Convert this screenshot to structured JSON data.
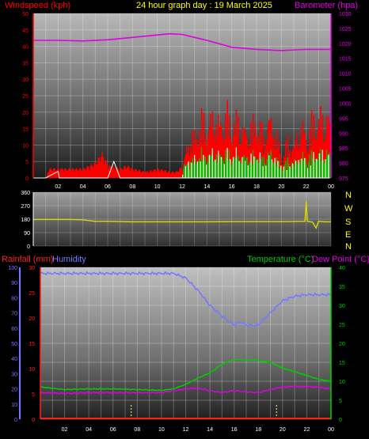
{
  "header": {
    "wind_label": "Windspeed (kph)",
    "title": "24 hour graph day : 19 March 2025",
    "baro_label": "Barometer (hpa)"
  },
  "colors": {
    "wind": "#ff0000",
    "baro": "#e000e0",
    "direction": "#d8d800",
    "rain": "#ff2020",
    "humidity": "#7878ff",
    "temperature": "#00cc00",
    "dewpoint": "#e000e0",
    "gust_low": "#00c000",
    "wind_low": "#e8ffe8"
  },
  "compass": [
    "N",
    "W",
    "S",
    "E",
    "N"
  ],
  "chart_data": [
    {
      "type": "line",
      "name": "wind-barometer",
      "xlabel": "",
      "x_ticks": [
        "02",
        "04",
        "06",
        "08",
        "10",
        "12",
        "14",
        "16",
        "18",
        "20",
        "22",
        "00"
      ],
      "y_left_label": "Windspeed (kph)",
      "y_left_ticks": [
        0,
        5,
        10,
        15,
        20,
        25,
        30,
        35,
        40,
        45,
        50
      ],
      "y_left_lim": [
        0,
        50
      ],
      "y_right_label": "Barometer (hpa)",
      "y_right_ticks": [
        975,
        980,
        985,
        990,
        995,
        1000,
        1005,
        1010,
        1015,
        1020,
        1025,
        1030
      ],
      "y_right_lim": [
        975,
        1030
      ],
      "grid": true,
      "series": [
        {
          "name": "Windspeed (kph)",
          "axis": "left",
          "x": [
            0,
            1,
            2,
            2.1,
            3,
            4,
            5,
            6,
            6.5,
            7,
            8,
            9,
            10,
            11,
            11.9,
            12,
            13,
            14,
            15,
            16,
            17,
            18,
            19,
            20,
            21,
            22,
            23,
            23.9
          ],
          "values": [
            0,
            0,
            2,
            0,
            0,
            0,
            0,
            0,
            5,
            0,
            0,
            0,
            0,
            0,
            0,
            0,
            0,
            0,
            0,
            0,
            0,
            0,
            0,
            0,
            0,
            0,
            0,
            0
          ]
        },
        {
          "name": "Gusts",
          "axis": "left",
          "x": [
            0,
            1,
            1.2,
            2,
            3,
            4,
            5,
            5.5,
            6,
            7,
            7.5,
            8,
            9,
            10,
            11,
            11.5,
            12,
            12.5,
            13,
            13.5,
            14,
            14.5,
            15,
            15.5,
            16,
            16.5,
            17,
            17.5,
            18,
            18.5,
            19,
            19.5,
            20,
            20.5,
            21,
            21.5,
            22,
            22.5,
            23,
            23.5,
            24
          ],
          "values": [
            0,
            0,
            3,
            3,
            3,
            3,
            5,
            8,
            4,
            3,
            4,
            3,
            2,
            3,
            2,
            2,
            4,
            15,
            16,
            22,
            19,
            24,
            20,
            25,
            19,
            23,
            17,
            19,
            22,
            16,
            22,
            18,
            7,
            14,
            12,
            21,
            15,
            22,
            22,
            25,
            18
          ]
        },
        {
          "name": "Barometer (hpa)",
          "axis": "right",
          "x": [
            0,
            2,
            4,
            6,
            8,
            10,
            11,
            12,
            14,
            16,
            18,
            20,
            22,
            24
          ],
          "values": [
            1021,
            1021,
            1020.8,
            1021.2,
            1022,
            1022.8,
            1023.2,
            1023,
            1021,
            1018.7,
            1018,
            1017.6,
            1018,
            1018
          ]
        }
      ]
    },
    {
      "type": "line",
      "name": "wind-direction",
      "x_ticks": [],
      "y_ticks": [
        0,
        90,
        180,
        270,
        360
      ],
      "ylim": [
        0,
        360
      ],
      "series": [
        {
          "name": "Direction",
          "x": [
            0,
            1,
            2,
            3,
            4,
            5,
            6,
            8,
            10,
            12,
            14,
            16,
            18,
            20,
            21.9,
            22,
            22.1,
            22.5,
            22.8,
            23,
            23.5,
            24
          ],
          "values": [
            178,
            178,
            178,
            178,
            175,
            165,
            165,
            162,
            162,
            162,
            162,
            163,
            163,
            163,
            165,
            300,
            165,
            160,
            120,
            165,
            162,
            162
          ]
        }
      ]
    },
    {
      "type": "line",
      "name": "temperature-humidity",
      "x_ticks": [
        "02",
        "04",
        "06",
        "08",
        "10",
        "12",
        "14",
        "16",
        "18",
        "20",
        "22",
        "00"
      ],
      "y_humidity_label": "Humidity",
      "y_humidity_ticks": [
        0,
        10,
        20,
        30,
        40,
        50,
        60,
        70,
        80,
        90,
        100
      ],
      "y_humidity_lim": [
        0,
        100
      ],
      "y_rain_label": "Rainfall (mm)",
      "y_rain_ticks": [
        0,
        5,
        10,
        15,
        20,
        25,
        30
      ],
      "y_rain_lim": [
        0,
        30
      ],
      "y_temp_label": "Temperature (°C)",
      "y_dew_label": "Dew Point (°C)",
      "y_temp_ticks": [
        0,
        5,
        10,
        15,
        20,
        25,
        30,
        35,
        40
      ],
      "y_temp_lim": [
        0,
        40
      ],
      "series": [
        {
          "name": "Humidity",
          "axis": "humidity",
          "x": [
            0,
            2,
            4,
            6,
            8,
            10,
            11,
            12,
            13,
            14,
            15,
            16,
            16.5,
            17,
            18,
            19,
            20,
            21,
            22,
            23,
            24
          ],
          "values": [
            96,
            96,
            96,
            96,
            96,
            96,
            96,
            93,
            85,
            75,
            68,
            62,
            64,
            62,
            62,
            70,
            78,
            81,
            82,
            82,
            82
          ]
        },
        {
          "name": "Temperature (°C)",
          "axis": "temp",
          "x": [
            0,
            2,
            4,
            6,
            8,
            10,
            11,
            12,
            13,
            14,
            15,
            16,
            17,
            18,
            19,
            20,
            21,
            22,
            23,
            24
          ],
          "values": [
            8.5,
            7.8,
            8.0,
            8.0,
            7.8,
            7.6,
            8.0,
            9.2,
            10.8,
            12.2,
            14.5,
            15.8,
            15.6,
            15.5,
            15.0,
            13.5,
            12.5,
            11.5,
            10.5,
            10
          ]
        },
        {
          "name": "Dew Point (°C)",
          "axis": "temp",
          "x": [
            0,
            2,
            4,
            6,
            8,
            10,
            11,
            12,
            13,
            14,
            15,
            16,
            17,
            18,
            19,
            20,
            21,
            22,
            23,
            24
          ],
          "values": [
            7.0,
            6.8,
            7.0,
            7.0,
            7.0,
            7.0,
            7.5,
            8.0,
            8.2,
            7.5,
            7.0,
            7.5,
            7.2,
            7.0,
            7.8,
            8.5,
            8.6,
            8.6,
            8.4,
            8.0
          ]
        },
        {
          "name": "Rainfall (mm)",
          "axis": "rain",
          "x": [
            0,
            24
          ],
          "values": [
            0,
            0
          ]
        }
      ]
    }
  ]
}
